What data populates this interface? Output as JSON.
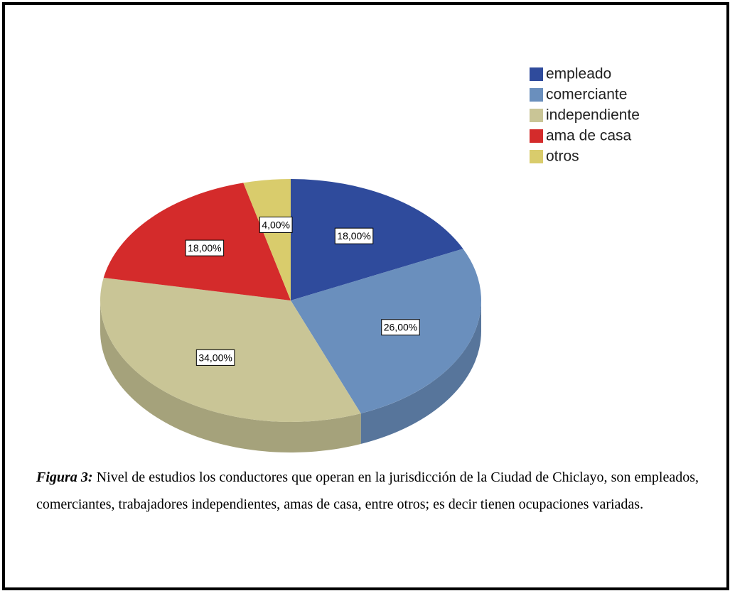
{
  "chart_data": {
    "type": "pie",
    "categories": [
      "empleado",
      "comerciante",
      "independiente",
      "ama de casa",
      "otros"
    ],
    "values": [
      18,
      26,
      34,
      18,
      4
    ],
    "value_labels": [
      "18,00%",
      "26,00%",
      "34,00%",
      "18,00%",
      "4,00%"
    ],
    "colors": [
      "#2f4b9c",
      "#6a8fbd",
      "#c9c596",
      "#d42b2b",
      "#d9cc6c"
    ],
    "legend": "top-right"
  },
  "caption": {
    "label": "Figura 3:",
    "text": "Nivel de estudios los conductores que operan en la jurisdicción de la Ciudad de Chiclayo, son empleados, comerciantes, trabajadores independientes, amas de casa, entre otros; es decir tienen ocupaciones variadas."
  }
}
